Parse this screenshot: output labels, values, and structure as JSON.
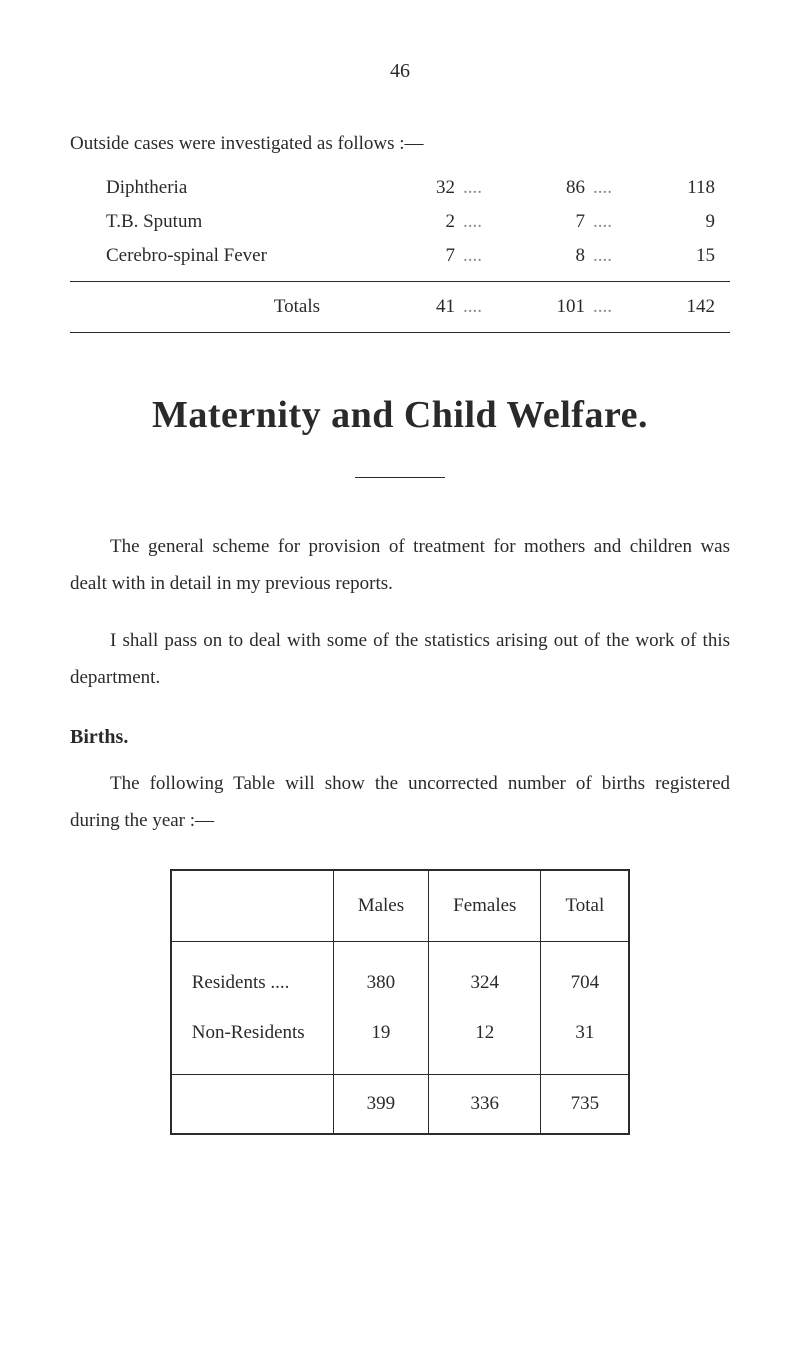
{
  "page_number": "46",
  "intro_text": "Outside cases were investigated as follows :—",
  "outside_cases": {
    "rows": [
      {
        "label": "Diphtheria",
        "col1": "32",
        "col2": "86",
        "col3": "118"
      },
      {
        "label": "T.B. Sputum",
        "col1": "2",
        "col2": "7",
        "col3": "9"
      },
      {
        "label": "Cerebro-spinal Fever",
        "col1": "7",
        "col2": "8",
        "col3": "15"
      }
    ],
    "totals": {
      "label": "Totals",
      "col1": "41",
      "col2": "101",
      "col3": "142"
    }
  },
  "main_heading": "Maternity and Child Welfare.",
  "para1": "The general scheme for provision of treatment for mothers and children was dealt with in detail in my previous reports.",
  "para2": "I shall pass on to deal with some of the statistics arising out of the work of this department.",
  "births_heading": "Births.",
  "births_intro": "The following Table will show the uncorrected number of births registered during the year :—",
  "births_table": {
    "headers": {
      "c1": "",
      "c2": "Males",
      "c3": "Females",
      "c4": "Total"
    },
    "rows": [
      {
        "label": "Residents ....",
        "males": "380",
        "females": "324",
        "total": "704"
      },
      {
        "label": "Non-Residents",
        "males": "19",
        "females": "12",
        "total": "31"
      }
    ],
    "totals": {
      "label": "",
      "males": "399",
      "females": "336",
      "total": "735"
    }
  },
  "dots_short": "....",
  "dots_long": "...."
}
